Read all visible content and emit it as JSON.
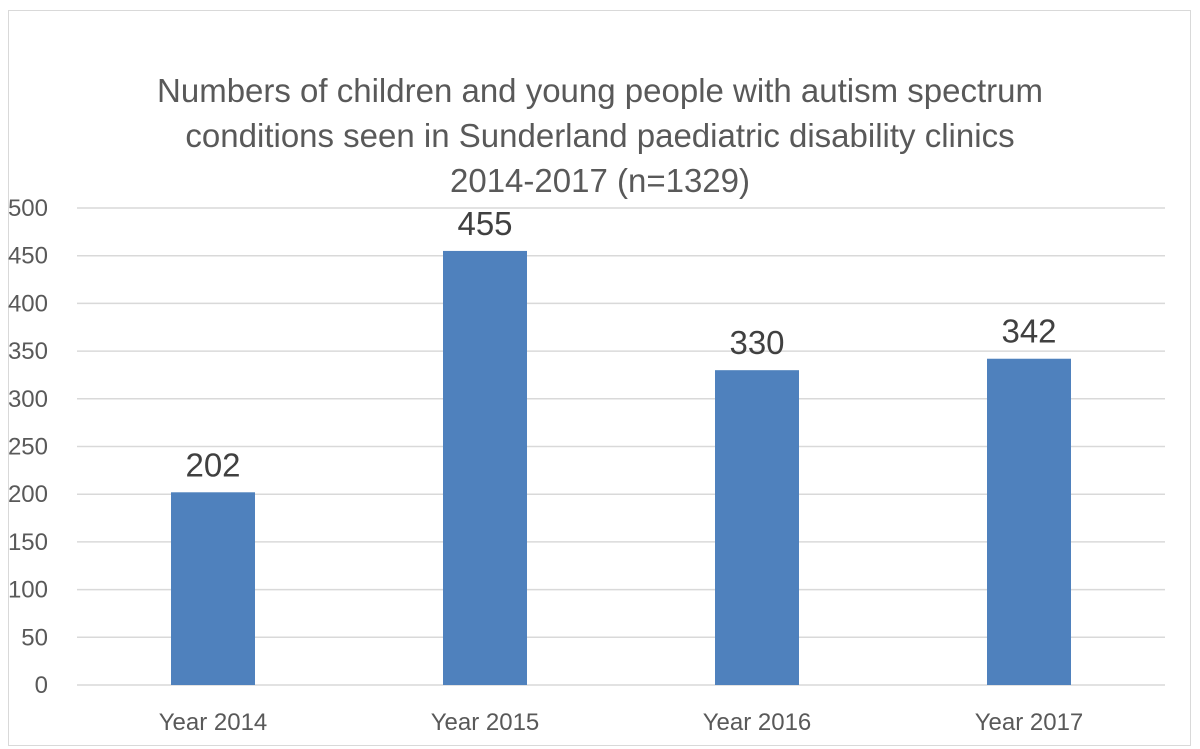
{
  "chart_data": {
    "type": "bar",
    "title_lines": [
      "Numbers of children and young people with autism spectrum",
      "conditions seen in Sunderland paediatric disability clinics",
      "2014-2017 (n=1329)"
    ],
    "categories": [
      "Year 2014",
      "Year 2015",
      "Year 2016",
      "Year 2017"
    ],
    "values": [
      202,
      455,
      330,
      342
    ],
    "data_labels": [
      "202",
      "455",
      "330",
      "342"
    ],
    "ylim": [
      0,
      500
    ],
    "yticks": [
      0,
      50,
      100,
      150,
      200,
      250,
      300,
      350,
      400,
      450,
      500
    ],
    "grid": true,
    "legend": "none",
    "bar_color": "#4f81bd",
    "gridline_color": "#d9d9d9"
  }
}
